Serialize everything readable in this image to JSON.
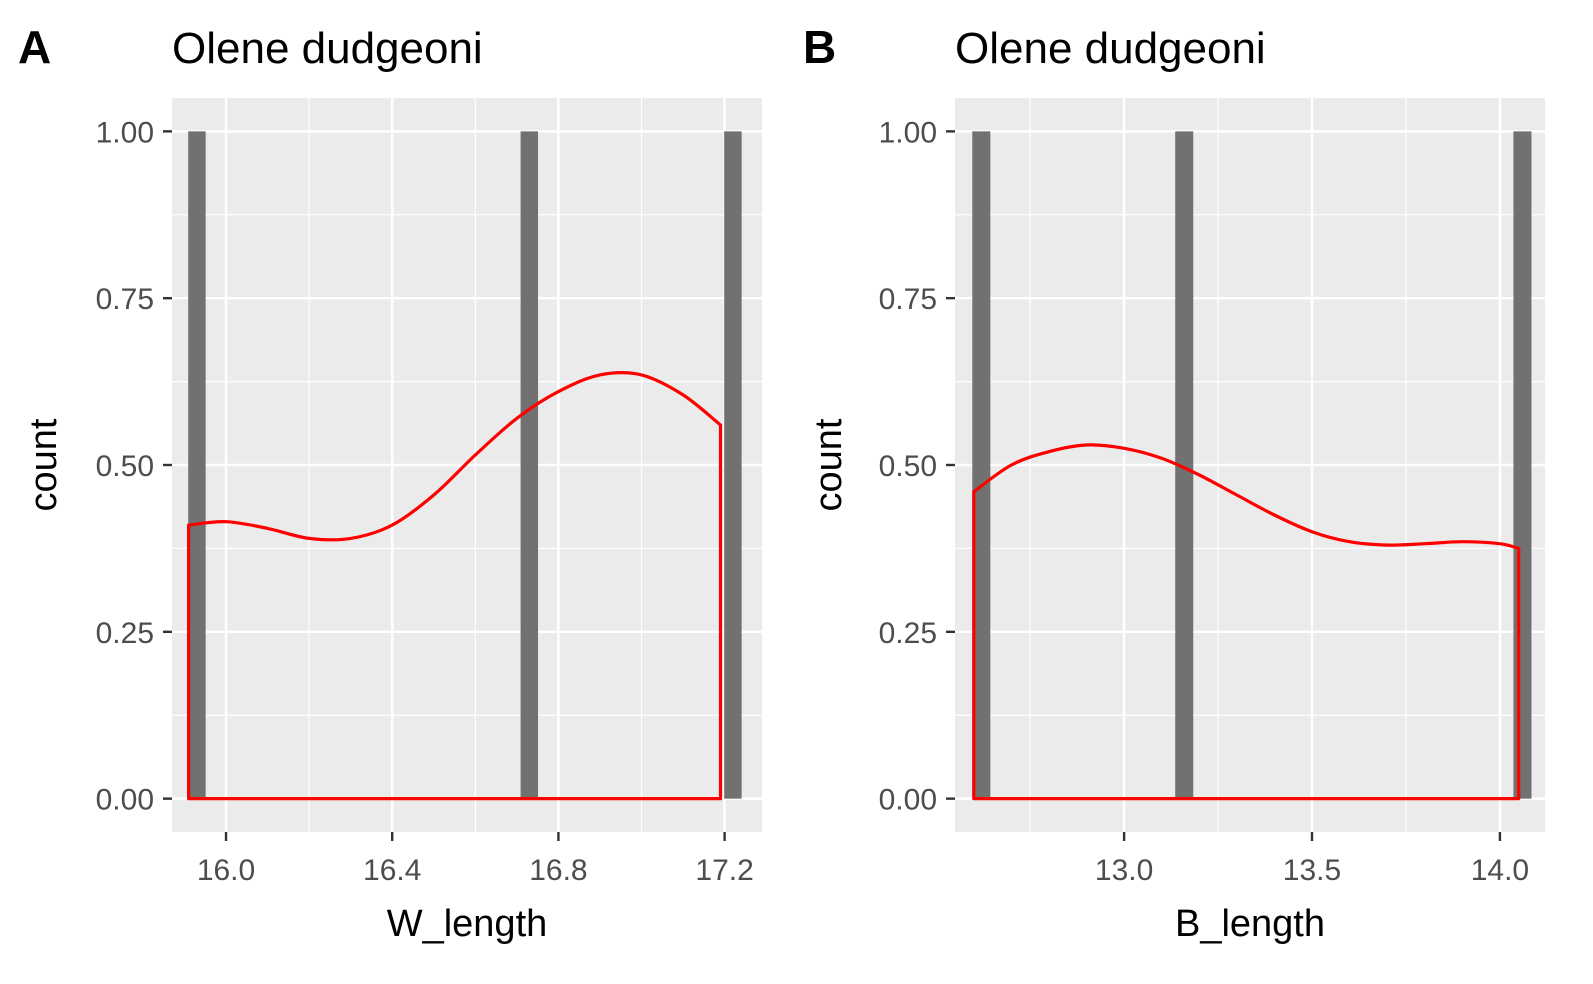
{
  "chart_data": [
    {
      "type": "bar",
      "panel_tag": "A",
      "title": "Olene dudgeoni",
      "xlabel": "W_length",
      "ylabel": "count",
      "xlim": [
        15.87,
        17.29
      ],
      "ylim": [
        -0.05,
        1.05
      ],
      "x_ticks": [
        16.0,
        16.4,
        16.8,
        17.2
      ],
      "x_tick_labels": [
        "16.0",
        "16.4",
        "16.8",
        "17.2"
      ],
      "y_ticks": [
        0,
        0.25,
        0.5,
        0.75,
        1.0
      ],
      "y_tick_labels": [
        "0.00",
        "0.25",
        "0.50",
        "0.75",
        "1.00"
      ],
      "grid": true,
      "bar_width": 0.042,
      "bars": [
        {
          "x": 15.93,
          "count": 1
        },
        {
          "x": 16.73,
          "count": 1
        },
        {
          "x": 17.22,
          "count": 1
        }
      ],
      "density_color": "#ff0000",
      "bar_color": "#717171",
      "density": {
        "x": [
          15.91,
          16.0,
          16.1,
          16.2,
          16.3,
          16.4,
          16.5,
          16.6,
          16.7,
          16.8,
          16.9,
          17.0,
          17.1,
          17.19
        ],
        "y": [
          0.41,
          0.415,
          0.405,
          0.39,
          0.39,
          0.41,
          0.455,
          0.515,
          0.57,
          0.61,
          0.635,
          0.635,
          0.605,
          0.56
        ]
      }
    },
    {
      "type": "bar",
      "panel_tag": "B",
      "title": "Olene dudgeoni",
      "xlabel": "B_length",
      "ylabel": "count",
      "xlim": [
        12.55,
        14.12
      ],
      "ylim": [
        -0.05,
        1.05
      ],
      "x_ticks": [
        13.0,
        13.5,
        14.0
      ],
      "x_tick_labels": [
        "13.0",
        "13.5",
        "14.0"
      ],
      "y_ticks": [
        0,
        0.25,
        0.5,
        0.75,
        1.0
      ],
      "y_tick_labels": [
        "0.00",
        "0.25",
        "0.50",
        "0.75",
        "1.00"
      ],
      "grid": true,
      "bar_width": 0.048,
      "bars": [
        {
          "x": 12.62,
          "count": 1
        },
        {
          "x": 13.16,
          "count": 1
        },
        {
          "x": 14.06,
          "count": 1
        }
      ],
      "density_color": "#ff0000",
      "bar_color": "#717171",
      "density": {
        "x": [
          12.6,
          12.7,
          12.8,
          12.9,
          13.0,
          13.1,
          13.2,
          13.3,
          13.4,
          13.5,
          13.6,
          13.7,
          13.8,
          13.9,
          14.0,
          14.05
        ],
        "y": [
          0.46,
          0.5,
          0.52,
          0.53,
          0.525,
          0.51,
          0.485,
          0.455,
          0.425,
          0.4,
          0.385,
          0.38,
          0.382,
          0.385,
          0.382,
          0.375
        ]
      }
    }
  ]
}
